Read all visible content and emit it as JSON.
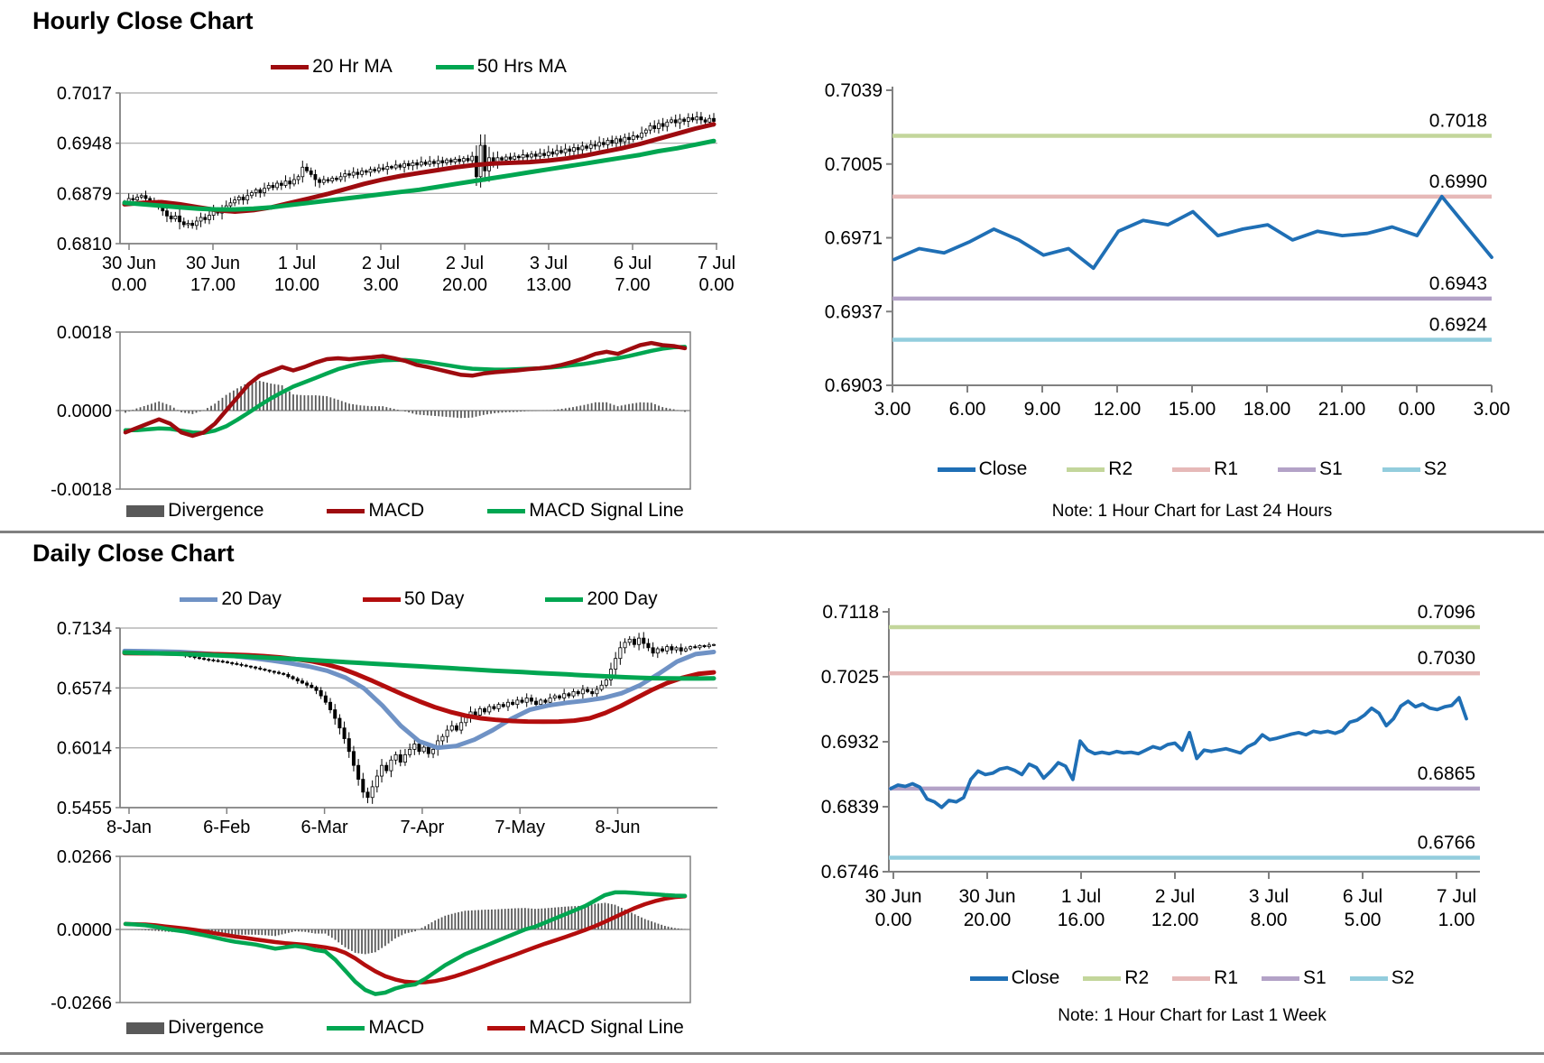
{
  "sections": [
    {
      "title": "Hourly Close Chart"
    },
    {
      "title": "Daily Close Chart"
    }
  ],
  "chart_data": [
    {
      "id": "hourly_price",
      "type": "candlestick",
      "title": "Hourly Close Chart",
      "ylim": [
        0.681,
        0.7017
      ],
      "yticks": [
        "0.7017",
        "0.6948",
        "0.6879",
        "0.6810"
      ],
      "xticks": [
        [
          "30 Jun",
          "0.00"
        ],
        [
          "30 Jun",
          "17.00"
        ],
        [
          "1 Jul",
          "10.00"
        ],
        [
          "2 Jul",
          "3.00"
        ],
        [
          "2 Jul",
          "20.00"
        ],
        [
          "3 Jul",
          "13.00"
        ],
        [
          "6 Jul",
          "7.00"
        ],
        [
          "7 Jul",
          "0.00"
        ]
      ],
      "candles_close": [
        0.6868,
        0.6872,
        0.687,
        0.6874,
        0.6876,
        0.6872,
        0.6868,
        0.6864,
        0.686,
        0.6855,
        0.6848,
        0.6844,
        0.6848,
        0.684,
        0.6836,
        0.6838,
        0.6835,
        0.6841,
        0.6846,
        0.6843,
        0.6849,
        0.6855,
        0.6852,
        0.6858,
        0.6862,
        0.6866,
        0.687,
        0.6874,
        0.687,
        0.6876,
        0.688,
        0.6884,
        0.688,
        0.6886,
        0.689,
        0.6887,
        0.6893,
        0.689,
        0.6896,
        0.6892,
        0.6898,
        0.6902,
        0.6915,
        0.691,
        0.6905,
        0.6898,
        0.6894,
        0.6898,
        0.6896,
        0.69,
        0.6898,
        0.6902,
        0.6906,
        0.6904,
        0.6908,
        0.6905,
        0.691,
        0.6908,
        0.6912,
        0.691,
        0.6914,
        0.6912,
        0.6916,
        0.6914,
        0.6918,
        0.6915,
        0.692,
        0.6917,
        0.6921,
        0.6918,
        0.6922,
        0.6919,
        0.6923,
        0.692,
        0.6924,
        0.6921,
        0.6925,
        0.6922,
        0.6926,
        0.6923,
        0.6927,
        0.6924,
        0.693,
        0.6902,
        0.6945,
        0.691,
        0.6928,
        0.6922,
        0.6928,
        0.6925,
        0.6929,
        0.6926,
        0.693,
        0.6928,
        0.6932,
        0.6929,
        0.6933,
        0.693,
        0.6934,
        0.6931,
        0.6936,
        0.6933,
        0.6938,
        0.6935,
        0.694,
        0.6937,
        0.6942,
        0.6939,
        0.6944,
        0.6941,
        0.6946,
        0.6944,
        0.6949,
        0.6946,
        0.6952,
        0.6948,
        0.6954,
        0.695,
        0.6956,
        0.6953,
        0.6958,
        0.6956,
        0.6962,
        0.6966,
        0.6972,
        0.6968,
        0.6975,
        0.6971,
        0.6977,
        0.698,
        0.6976,
        0.6981,
        0.6978,
        0.6983,
        0.698,
        0.6984,
        0.698,
        0.6977,
        0.6982,
        0.6978
      ],
      "series": [
        {
          "name": "20 Hr MA",
          "color": "#9E0B0F",
          "values": [
            0.6864,
            0.6866,
            0.6867,
            0.6864,
            0.686,
            0.6856,
            0.6854,
            0.6856,
            0.686,
            0.6866,
            0.6872,
            0.6878,
            0.6885,
            0.6892,
            0.6898,
            0.6903,
            0.6907,
            0.6911,
            0.6915,
            0.6918,
            0.692,
            0.6921,
            0.6922,
            0.6924,
            0.6927,
            0.6931,
            0.6936,
            0.6941,
            0.6947,
            0.6954,
            0.6961,
            0.6968,
            0.6974
          ]
        },
        {
          "name": "50 Hrs MA",
          "color": "#00A651",
          "values": [
            0.6866,
            0.6864,
            0.6862,
            0.686,
            0.6858,
            0.6857,
            0.6857,
            0.6858,
            0.686,
            0.6863,
            0.6866,
            0.6869,
            0.6872,
            0.6875,
            0.6878,
            0.6881,
            0.6884,
            0.6888,
            0.6892,
            0.6896,
            0.69,
            0.6904,
            0.6908,
            0.6912,
            0.6916,
            0.692,
            0.6924,
            0.6928,
            0.6932,
            0.6937,
            0.6941,
            0.6946,
            0.6951
          ]
        }
      ]
    },
    {
      "id": "hourly_macd",
      "type": "macd",
      "ylim": [
        -0.0018,
        0.0018
      ],
      "yticks": [
        "0.0018",
        "0.0000",
        "-0.0018"
      ],
      "series": [
        {
          "name": "Divergence",
          "color": "#595959",
          "style": "bar"
        },
        {
          "name": "MACD",
          "color": "#9E0B0F",
          "values": [
            -0.0005,
            -0.0004,
            -0.0003,
            -0.0002,
            -0.0003,
            -0.0005,
            -0.00058,
            -0.0005,
            -0.0003,
            0,
            0.0003,
            0.0006,
            0.0008,
            0.0009,
            0.001,
            0.00092,
            0.001,
            0.0011,
            0.00118,
            0.0012,
            0.00118,
            0.0012,
            0.00122,
            0.00125,
            0.0012,
            0.00114,
            0.00105,
            0.001,
            0.00094,
            0.00088,
            0.00082,
            0.0008,
            0.00085,
            0.00088,
            0.0009,
            0.00092,
            0.00095,
            0.00097,
            0.001,
            0.00105,
            0.00112,
            0.0012,
            0.0013,
            0.00135,
            0.0013,
            0.0014,
            0.0015,
            0.00155,
            0.0015,
            0.00148,
            0.00143
          ]
        },
        {
          "name": "MACD Signal Line",
          "color": "#00A651",
          "values": [
            -0.00045,
            -0.00045,
            -0.00043,
            -0.00041,
            -0.00042,
            -0.00046,
            -0.0005,
            -0.00051,
            -0.00046,
            -0.00036,
            -0.00021,
            -5e-05,
            0.00012,
            0.00028,
            0.00042,
            0.00055,
            0.00065,
            0.00075,
            0.00085,
            0.00095,
            0.00102,
            0.00108,
            0.00112,
            0.00115,
            0.00116,
            0.00116,
            0.00114,
            0.00111,
            0.00107,
            0.00103,
            0.00099,
            0.00096,
            0.00095,
            0.00094,
            0.00094,
            0.00095,
            0.00096,
            0.00097,
            0.00099,
            0.00101,
            0.00104,
            0.00107,
            0.00111,
            0.00116,
            0.0012,
            0.00125,
            0.00131,
            0.00137,
            0.00142,
            0.00145,
            0.00146
          ]
        }
      ]
    },
    {
      "id": "hourly_pivot",
      "type": "line-pivot",
      "ylim": [
        0.6903,
        0.7039
      ],
      "yticks": [
        "0.7039",
        "0.7005",
        "0.6971",
        "0.6937",
        "0.6903"
      ],
      "xticks": [
        "3.00",
        "6.00",
        "9.00",
        "12.00",
        "15.00",
        "18.00",
        "21.00",
        "0.00",
        "3.00"
      ],
      "close": {
        "name": "Close",
        "color": "#1F6FB5",
        "values": [
          0.6961,
          0.6966,
          0.6964,
          0.6969,
          0.6975,
          0.697,
          0.6963,
          0.6966,
          0.6957,
          0.6974,
          0.6979,
          0.6977,
          0.6983,
          0.6972,
          0.6975,
          0.6977,
          0.697,
          0.6974,
          0.6972,
          0.6973,
          0.6976,
          0.6972,
          0.699,
          0.6976,
          0.6962
        ]
      },
      "pivots": [
        {
          "name": "R2",
          "label": "0.7018",
          "value": 0.7018,
          "color": "#C3D69B"
        },
        {
          "name": "R1",
          "label": "0.6990",
          "value": 0.699,
          "color": "#E6B9B8"
        },
        {
          "name": "S1",
          "label": "0.6943",
          "value": 0.6943,
          "color": "#B3A2C7"
        },
        {
          "name": "S2",
          "label": "0.6924",
          "value": 0.6924,
          "color": "#93CDDD"
        }
      ],
      "note": "Note: 1 Hour Chart for Last 24 Hours"
    },
    {
      "id": "daily_price",
      "type": "candlestick",
      "title": "Daily Close Chart",
      "ylim": [
        0.5455,
        0.7134
      ],
      "yticks": [
        "0.7134",
        "0.6574",
        "0.6014",
        "0.5455"
      ],
      "xticks": [
        "8-Jan",
        "6-Feb",
        "6-Mar",
        "7-Apr",
        "7-May",
        "8-Jun"
      ],
      "candles_close": [
        0.6915,
        0.6918,
        0.6912,
        0.6916,
        0.691,
        0.6914,
        0.6908,
        0.6912,
        0.6906,
        0.6902,
        0.6898,
        0.689,
        0.6882,
        0.6874,
        0.6866,
        0.6858,
        0.685,
        0.6842,
        0.6836,
        0.683,
        0.6824,
        0.6818,
        0.681,
        0.6802,
        0.6794,
        0.6786,
        0.6778,
        0.677,
        0.676,
        0.675,
        0.674,
        0.673,
        0.672,
        0.671,
        0.67,
        0.668,
        0.666,
        0.664,
        0.662,
        0.66,
        0.658,
        0.655,
        0.65,
        0.644,
        0.637,
        0.629,
        0.62,
        0.61,
        0.598,
        0.585,
        0.572,
        0.56,
        0.555,
        0.565,
        0.575,
        0.585,
        0.58,
        0.59,
        0.595,
        0.588,
        0.595,
        0.6,
        0.605,
        0.598,
        0.602,
        0.596,
        0.6,
        0.608,
        0.612,
        0.618,
        0.622,
        0.618,
        0.625,
        0.63,
        0.635,
        0.632,
        0.638,
        0.635,
        0.64,
        0.638,
        0.642,
        0.64,
        0.644,
        0.642,
        0.646,
        0.644,
        0.648,
        0.645,
        0.642,
        0.646,
        0.644,
        0.648,
        0.65,
        0.648,
        0.652,
        0.65,
        0.654,
        0.652,
        0.656,
        0.654,
        0.652,
        0.656,
        0.66,
        0.665,
        0.675,
        0.685,
        0.695,
        0.7,
        0.703,
        0.698,
        0.704,
        0.699,
        0.695,
        0.69,
        0.694,
        0.692,
        0.696,
        0.693,
        0.695,
        0.692,
        0.694,
        0.696,
        0.695,
        0.697,
        0.696,
        0.6975,
        0.698
      ],
      "series": [
        {
          "name": "20 Day",
          "color": "#6F92C5",
          "values": [
            0.692,
            0.6918,
            0.6915,
            0.691,
            0.69,
            0.6888,
            0.6872,
            0.6852,
            0.683,
            0.6805,
            0.6775,
            0.6735,
            0.667,
            0.657,
            0.641,
            0.622,
            0.6075,
            0.6015,
            0.603,
            0.609,
            0.618,
            0.6285,
            0.637,
            0.641,
            0.6435,
            0.6455,
            0.648,
            0.6525,
            0.66,
            0.6705,
            0.682,
            0.689,
            0.691
          ]
        },
        {
          "name": "50 Day",
          "color": "#B30D0D",
          "values": [
            0.69,
            0.6899,
            0.6898,
            0.6896,
            0.6894,
            0.6892,
            0.6889,
            0.6885,
            0.688,
            0.6872,
            0.686,
            0.6845,
            0.6825,
            0.6795,
            0.6755,
            0.67,
            0.664,
            0.6575,
            0.651,
            0.645,
            0.6395,
            0.635,
            0.6315,
            0.629,
            0.6275,
            0.6265,
            0.626,
            0.6258,
            0.626,
            0.6268,
            0.629,
            0.634,
            0.6405,
            0.648,
            0.6555,
            0.662,
            0.667,
            0.6705,
            0.672
          ]
        },
        {
          "name": "200 Day",
          "color": "#00A651",
          "values": [
            0.6905,
            0.6902,
            0.6899,
            0.6895,
            0.6891,
            0.6886,
            0.6881,
            0.6875,
            0.6869,
            0.6862,
            0.6855,
            0.6848,
            0.684,
            0.6832,
            0.6824,
            0.6816,
            0.6808,
            0.68,
            0.6792,
            0.6784,
            0.6776,
            0.6768,
            0.676,
            0.6752,
            0.6744,
            0.6736,
            0.6729,
            0.6722,
            0.6715,
            0.6708,
            0.6701,
            0.6694,
            0.6687,
            0.668,
            0.6674,
            0.6669,
            0.6665,
            0.6663,
            0.6662,
            0.6662,
            0.6663
          ]
        }
      ]
    },
    {
      "id": "daily_macd",
      "type": "macd",
      "ylim": [
        -0.0266,
        0.0266
      ],
      "yticks": [
        "0.0266",
        "0.0000",
        "-0.0266"
      ],
      "series": [
        {
          "name": "Divergence",
          "color": "#595959",
          "style": "bar"
        },
        {
          "name": "MACD",
          "color": "#00A651",
          "values": [
            0.002,
            0.0018,
            0.0015,
            0.001,
            0.0003,
            -0.0003,
            -0.0008,
            -0.0015,
            -0.0022,
            -0.003,
            -0.0038,
            -0.0045,
            -0.005,
            -0.0055,
            -0.0062,
            -0.007,
            -0.0065,
            -0.006,
            -0.0065,
            -0.0075,
            -0.008,
            -0.011,
            -0.015,
            -0.019,
            -0.022,
            -0.0235,
            -0.023,
            -0.0215,
            -0.0205,
            -0.02,
            -0.018,
            -0.0155,
            -0.013,
            -0.011,
            -0.009,
            -0.0075,
            -0.006,
            -0.0045,
            -0.003,
            -0.0015,
            0,
            0.001,
            0.0025,
            0.004,
            0.0055,
            0.007,
            0.0085,
            0.0105,
            0.0125,
            0.0135,
            0.0135,
            0.0133,
            0.013,
            0.0128,
            0.0125,
            0.0123,
            0.0122
          ]
        },
        {
          "name": "MACD Signal Line",
          "color": "#B30D0D",
          "values": [
            0.002,
            0.0019,
            0.0018,
            0.0015,
            0.0011,
            0.0007,
            0.0003,
            -0.0002,
            -0.0008,
            -0.0014,
            -0.002,
            -0.0026,
            -0.0031,
            -0.0036,
            -0.0041,
            -0.0046,
            -0.005,
            -0.0053,
            -0.0056,
            -0.006,
            -0.0065,
            -0.0072,
            -0.0085,
            -0.0105,
            -0.013,
            -0.0152,
            -0.017,
            -0.0182,
            -0.019,
            -0.0193,
            -0.0192,
            -0.0188,
            -0.018,
            -0.017,
            -0.0158,
            -0.0145,
            -0.0132,
            -0.0118,
            -0.0105,
            -0.0092,
            -0.0078,
            -0.0065,
            -0.0052,
            -0.004,
            -0.0028,
            -0.0015,
            -0.0002,
            0.0012,
            0.0028,
            0.0045,
            0.0062,
            0.0078,
            0.0092,
            0.0103,
            0.0112,
            0.0118,
            0.0121
          ]
        }
      ]
    },
    {
      "id": "daily_pivot",
      "type": "line-pivot",
      "ylim": [
        0.6746,
        0.7118
      ],
      "yticks": [
        "0.7118",
        "0.7025",
        "0.6932",
        "0.6839",
        "0.6746"
      ],
      "xticks": [
        [
          "30 Jun",
          "0.00"
        ],
        [
          "30 Jun",
          "20.00"
        ],
        [
          "1 Jul",
          "16.00"
        ],
        [
          "2 Jul",
          "12.00"
        ],
        [
          "3 Jul",
          "8.00"
        ],
        [
          "6 Jul",
          "5.00"
        ],
        [
          "7 Jul",
          "1.00"
        ]
      ],
      "close": {
        "name": "Close",
        "color": "#1F6FB5",
        "values": [
          0.6865,
          0.687,
          0.6868,
          0.6872,
          0.6867,
          0.685,
          0.6846,
          0.6838,
          0.6848,
          0.6846,
          0.6852,
          0.6878,
          0.689,
          0.6885,
          0.6887,
          0.6893,
          0.6895,
          0.6891,
          0.6885,
          0.69,
          0.6895,
          0.688,
          0.689,
          0.6902,
          0.6897,
          0.6878,
          0.6933,
          0.692,
          0.6915,
          0.6917,
          0.6915,
          0.6918,
          0.6916,
          0.6917,
          0.6915,
          0.692,
          0.6925,
          0.6922,
          0.6928,
          0.693,
          0.692,
          0.6945,
          0.6908,
          0.692,
          0.6918,
          0.692,
          0.6922,
          0.6919,
          0.6916,
          0.6925,
          0.693,
          0.6942,
          0.6935,
          0.6937,
          0.694,
          0.6943,
          0.6945,
          0.6942,
          0.6947,
          0.6945,
          0.6947,
          0.6944,
          0.6948,
          0.696,
          0.6963,
          0.697,
          0.698,
          0.6973,
          0.6955,
          0.6965,
          0.6983,
          0.699,
          0.6982,
          0.6986,
          0.698,
          0.6978,
          0.6982,
          0.6984,
          0.6995,
          0.6965
        ]
      },
      "pivots": [
        {
          "name": "R2",
          "label": "0.7096",
          "value": 0.7096,
          "color": "#C3D69B"
        },
        {
          "name": "R1",
          "label": "0.7030",
          "value": 0.703,
          "color": "#E6B9B8"
        },
        {
          "name": "S1",
          "label": "0.6865",
          "value": 0.6865,
          "color": "#B3A2C7"
        },
        {
          "name": "S2",
          "label": "0.6766",
          "value": 0.6766,
          "color": "#93CDDD"
        }
      ],
      "note": "Note: 1 Hour Chart for Last 1 Week"
    }
  ]
}
